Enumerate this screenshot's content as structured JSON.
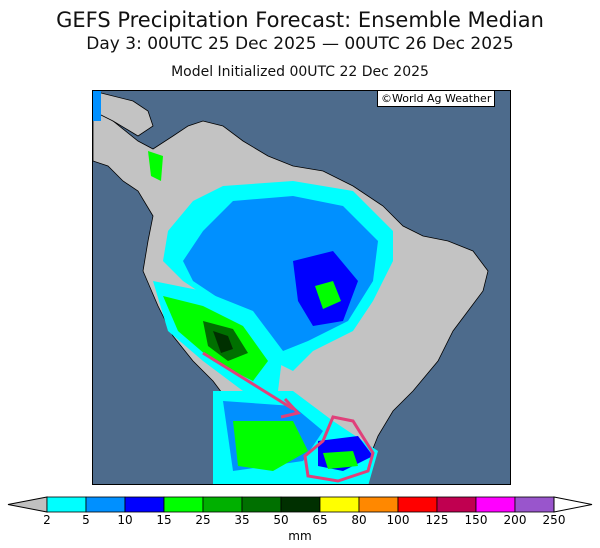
{
  "title": "GEFS Precipitation Forecast: Ensemble Median",
  "subtitle": "Day 3: 00UTC 25 Dec 2025 — 00UTC 26 Dec 2025",
  "init": "Model Initialized 00UTC 22 Dec 2025",
  "credit": "©World Ag Weather",
  "colors": {
    "ocean": "#4d6b8c",
    "land": "#c3c3c3",
    "annotation": "#e0407a"
  },
  "colorbar": {
    "unit": "mm",
    "labels": [
      "2",
      "5",
      "10",
      "15",
      "25",
      "35",
      "50",
      "65",
      "80",
      "100",
      "125",
      "150",
      "200",
      "250"
    ],
    "colors": [
      "#00ffff",
      "#0090ff",
      "#0000ff",
      "#00ff00",
      "#00b000",
      "#007000",
      "#003000",
      "#ffff00",
      "#ff8800",
      "#ff0000",
      "#c00050",
      "#ff00ff",
      "#9955cc"
    ],
    "below_color": "#c0c0c0",
    "above_color": "#ffffff"
  }
}
